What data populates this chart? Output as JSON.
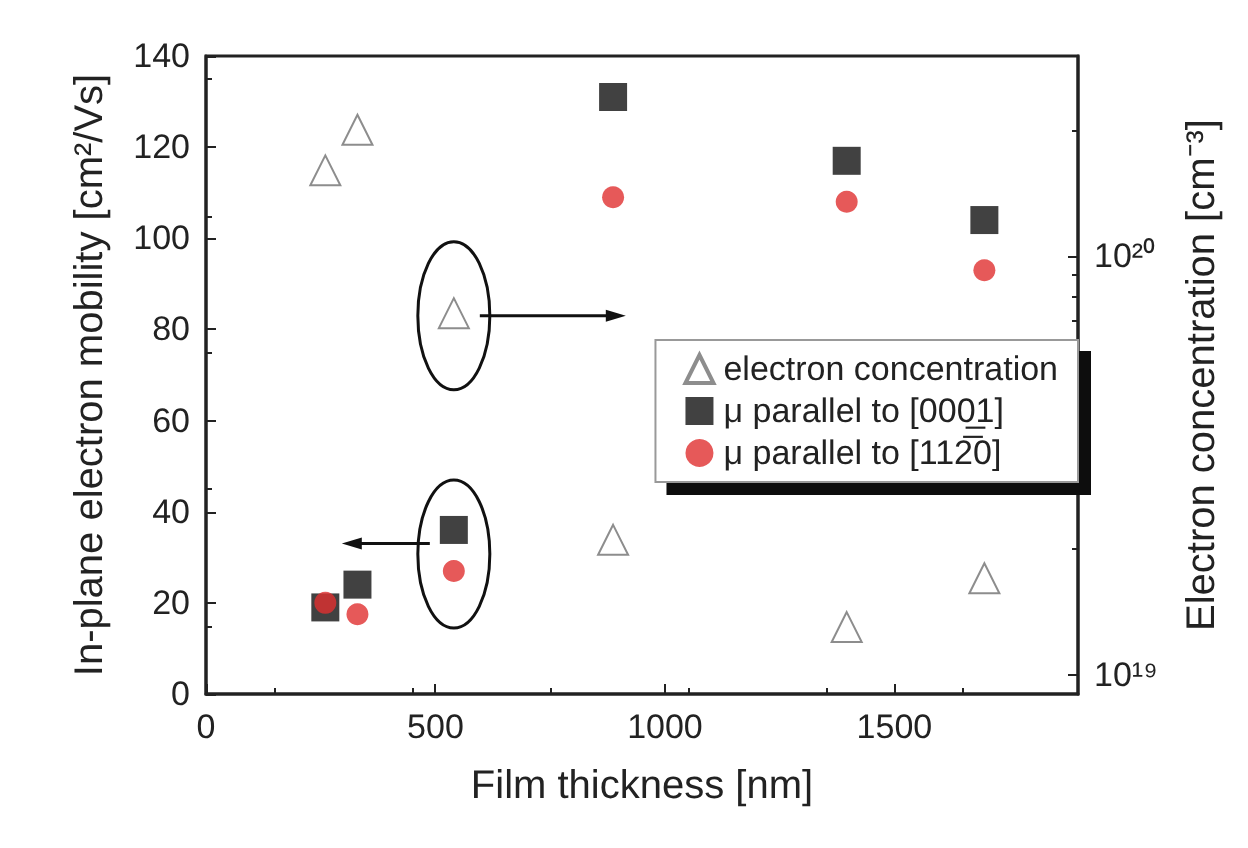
{
  "chart_data": {
    "type": "scatter",
    "xlabel": "Film thickness [nm]",
    "ylabel": "In-plane electron mobility [cm²/Vs]",
    "y2label": "Electron concentration [cm⁻³]",
    "x": [
      260,
      330,
      540,
      887,
      1396,
      1696
    ],
    "series": [
      {
        "name": "electron concentration",
        "color": "#707070",
        "marker": "triangle",
        "axis": "y2",
        "values": [
          1.6e+20,
          2e+20,
          7.3e+19,
          2.1e+19,
          1.3e+19,
          1.7e+19
        ]
      },
      {
        "name": "μ parallel to [000̲1]",
        "color": "#111111",
        "marker": "square",
        "values": [
          19,
          24,
          36,
          131,
          117,
          104
        ]
      },
      {
        "name": "μ parallel to [112̅0]",
        "color": "#e03030",
        "marker": "circle",
        "values": [
          20,
          17.5,
          27,
          109,
          108,
          93
        ]
      }
    ],
    "xlim": [
      0,
      1900
    ],
    "xticks": [
      0,
      500,
      1000,
      1500
    ],
    "ylim": [
      0,
      140
    ],
    "yticks": [
      0,
      20,
      40,
      60,
      80,
      100,
      120,
      140
    ],
    "y2lim": [
      9e+18,
      3e+20
    ],
    "y2ticks": [
      {
        "value": 1e+19,
        "label": "10¹⁹"
      },
      {
        "value": 1e+20,
        "label": "10²⁰"
      }
    ],
    "log": "y2",
    "grid": false,
    "legend": "right"
  }
}
